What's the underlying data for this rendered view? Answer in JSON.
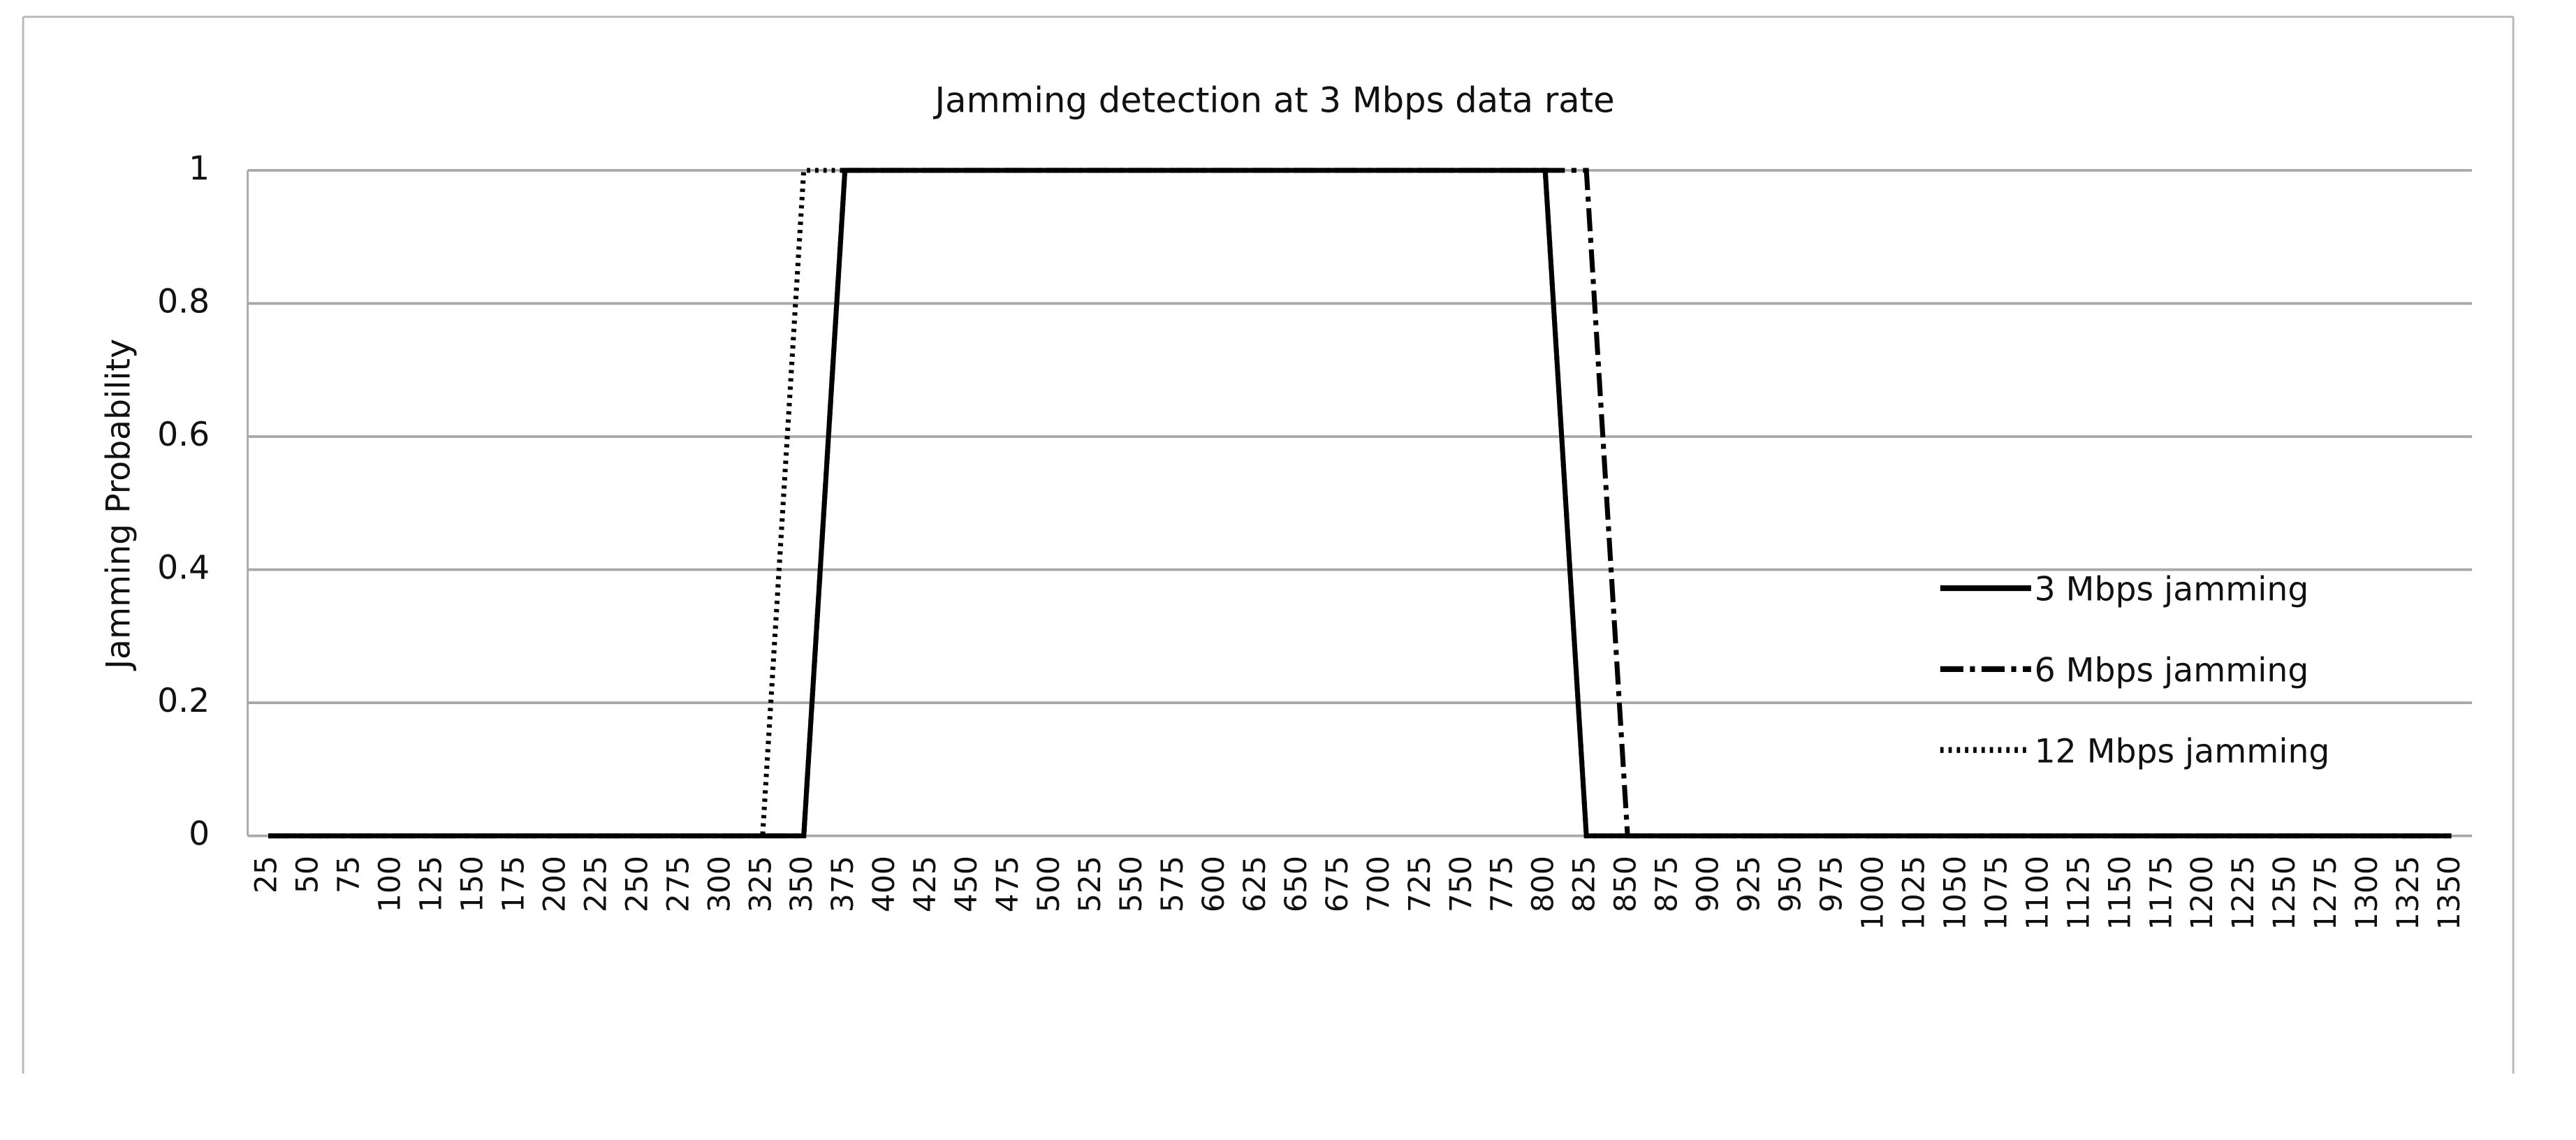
{
  "chart_data": {
    "type": "line",
    "title": "Jamming detection at 3 Mbps data rate",
    "y_label": "Jamming Probability",
    "categories": [
      25,
      50,
      75,
      100,
      125,
      150,
      175,
      200,
      225,
      250,
      275,
      300,
      325,
      350,
      375,
      400,
      425,
      450,
      475,
      500,
      525,
      550,
      575,
      600,
      625,
      650,
      675,
      700,
      725,
      750,
      775,
      800,
      825,
      850,
      875,
      900,
      925,
      950,
      975,
      1000,
      1025,
      1050,
      1075,
      1100,
      1125,
      1150,
      1175,
      1200,
      1225,
      1250,
      1275,
      1300,
      1325,
      1350
    ],
    "series": [
      {
        "name": "3 Mbps jamming",
        "color": "#000000",
        "dash": "solid",
        "values": [
          0,
          0,
          0,
          0,
          0,
          0,
          0,
          0,
          0,
          0,
          0,
          0,
          0,
          0,
          1,
          1,
          1,
          1,
          1,
          1,
          1,
          1,
          1,
          1,
          1,
          1,
          1,
          1,
          1,
          1,
          1,
          1,
          0,
          0,
          0,
          0,
          0,
          0,
          0,
          0,
          0,
          0,
          0,
          0,
          0,
          0,
          0,
          0,
          0,
          0,
          0,
          0,
          0,
          0
        ]
      },
      {
        "name": "6 Mbps jamming",
        "color": "#000000",
        "dash": "dashdot",
        "values": [
          0,
          0,
          0,
          0,
          0,
          0,
          0,
          0,
          0,
          0,
          0,
          0,
          0,
          0,
          1,
          1,
          1,
          1,
          1,
          1,
          1,
          1,
          1,
          1,
          1,
          1,
          1,
          1,
          1,
          1,
          1,
          1,
          1,
          0,
          0,
          0,
          0,
          0,
          0,
          0,
          0,
          0,
          0,
          0,
          0,
          0,
          0,
          0,
          0,
          0,
          0,
          0,
          0,
          0
        ]
      },
      {
        "name": "12 Mbps jamming",
        "color": "#000000",
        "dash": "dotted",
        "values": [
          0,
          0,
          0,
          0,
          0,
          0,
          0,
          0,
          0,
          0,
          0,
          0,
          0,
          1,
          1,
          1,
          1,
          1,
          1,
          1,
          1,
          1,
          1,
          1,
          1,
          1,
          1,
          1,
          1,
          1,
          1,
          1,
          0,
          0,
          0,
          0,
          0,
          0,
          0,
          0,
          0,
          0,
          0,
          0,
          0,
          0,
          0,
          0,
          0,
          0,
          0,
          0,
          0,
          0
        ]
      }
    ],
    "ylim": [
      0,
      1
    ],
    "yticks": [
      0,
      0.2,
      0.4,
      0.6,
      0.8,
      1
    ],
    "grid": true,
    "legend": "right"
  }
}
